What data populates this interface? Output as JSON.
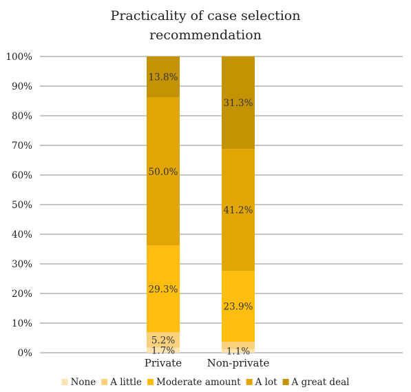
{
  "chart_data": {
    "type": "bar",
    "stacked": true,
    "title_lines": [
      "Practicality of case selection",
      "recommendation"
    ],
    "categories": [
      "Private",
      "Non-private"
    ],
    "ylim": [
      0,
      100
    ],
    "yticks": [
      "0%",
      "10%",
      "20%",
      "30%",
      "40%",
      "50%",
      "60%",
      "70%",
      "80%",
      "90%",
      "100%"
    ],
    "grid": true,
    "legend_position": "bottom",
    "series": [
      {
        "name": "None",
        "color": "#FCE3B0",
        "values": [
          1.7,
          1.1
        ],
        "labels": [
          "1.7%",
          "1.1%"
        ]
      },
      {
        "name": "A little",
        "color": "#FAD27E",
        "values": [
          5.2,
          2.6
        ],
        "labels": [
          "5.2%",
          ""
        ]
      },
      {
        "name": "Moderate amount",
        "color": "#FDBE0F",
        "values": [
          29.3,
          23.9
        ],
        "labels": [
          "29.3%",
          "23.9%"
        ]
      },
      {
        "name": "A lot",
        "color": "#E2A603",
        "values": [
          50.0,
          41.2
        ],
        "labels": [
          "50.0%",
          "41.2%"
        ]
      },
      {
        "name": "A great deal",
        "color": "#C49303",
        "values": [
          13.8,
          31.3
        ],
        "labels": [
          "13.8%",
          "31.3%"
        ]
      }
    ]
  }
}
